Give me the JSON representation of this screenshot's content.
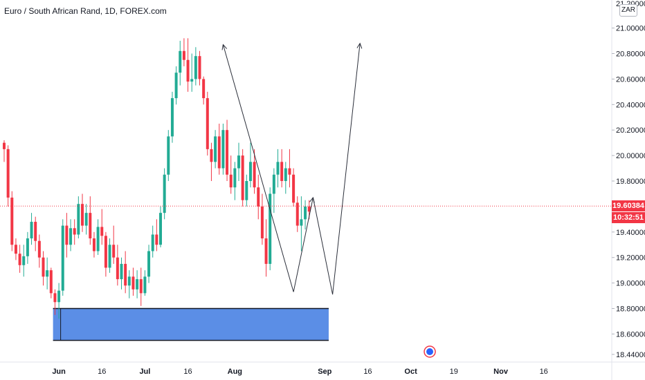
{
  "header": {
    "title": "Euro / South African Rand, 1D, FOREX.com",
    "currency_badge": "ZAR"
  },
  "price_axis": {
    "top_cut_label": "21.20000",
    "current_price": "19.60384",
    "countdown": "10:32:51"
  },
  "colors": {
    "up": "#22ab94",
    "down": "#f23645",
    "zone_fill": "#5b8ee6",
    "current_line": "#f23645",
    "annotation": "#2a2e39",
    "axis_text": "#131722"
  },
  "chart_data": {
    "type": "candlestick",
    "title": "Euro / South African Rand, 1D, FOREX.com",
    "xlabel": "",
    "ylabel": "",
    "ylim": [
      18.38,
      21.22
    ],
    "y_ticks": [
      {
        "value": 18.44,
        "label": "18.44000"
      },
      {
        "value": 18.6,
        "label": "18.60000"
      },
      {
        "value": 18.8,
        "label": "18.80000"
      },
      {
        "value": 19.0,
        "label": "19.00000"
      },
      {
        "value": 19.2,
        "label": "19.20000"
      },
      {
        "value": 19.4,
        "label": "19.40000"
      },
      {
        "value": 19.6,
        "label": "19.60000"
      },
      {
        "value": 19.8,
        "label": "19.80000"
      },
      {
        "value": 20.0,
        "label": "20.00000"
      },
      {
        "value": 20.2,
        "label": "20.20000"
      },
      {
        "value": 20.4,
        "label": "20.40000"
      },
      {
        "value": 20.6,
        "label": "20.60000"
      },
      {
        "value": 20.8,
        "label": "20.80000"
      },
      {
        "value": 21.0,
        "label": "21.00000"
      }
    ],
    "x_ticks": [
      {
        "label": "Jun",
        "bar": 14,
        "bold": true
      },
      {
        "label": "16",
        "bar": 25,
        "bold": false
      },
      {
        "label": "Jul",
        "bar": 36,
        "bold": true
      },
      {
        "label": "16",
        "bar": 47,
        "bold": false
      },
      {
        "label": "Aug",
        "bar": 59,
        "bold": true
      },
      {
        "label": "Sep",
        "bar": 82,
        "bold": true
      },
      {
        "label": "16",
        "bar": 93,
        "bold": false
      },
      {
        "label": "Oct",
        "bar": 104,
        "bold": true
      },
      {
        "label": "19",
        "bar": 115,
        "bold": false
      },
      {
        "label": "Nov",
        "bar": 127,
        "bold": true
      },
      {
        "label": "16",
        "bar": 138,
        "bold": false
      }
    ],
    "current_price": 19.60384,
    "candles": [
      [
        20.1,
        20.12,
        19.95,
        20.05
      ],
      [
        20.05,
        20.08,
        19.6,
        19.67
      ],
      [
        19.67,
        19.72,
        19.25,
        19.3
      ],
      [
        19.3,
        19.35,
        19.18,
        19.23
      ],
      [
        19.23,
        19.3,
        19.08,
        19.14
      ],
      [
        19.14,
        19.3,
        19.05,
        19.21
      ],
      [
        19.21,
        19.4,
        19.15,
        19.35
      ],
      [
        19.35,
        19.55,
        19.3,
        19.48
      ],
      [
        19.48,
        19.52,
        19.25,
        19.33
      ],
      [
        19.33,
        19.38,
        19.12,
        19.2
      ],
      [
        19.2,
        19.25,
        18.98,
        19.05
      ],
      [
        19.05,
        19.2,
        18.95,
        19.1
      ],
      [
        19.1,
        19.12,
        18.88,
        18.92
      ],
      [
        18.92,
        18.95,
        18.75,
        18.85
      ],
      [
        18.85,
        19.0,
        18.72,
        18.94
      ],
      [
        18.94,
        19.5,
        18.9,
        19.45
      ],
      [
        19.45,
        19.55,
        19.2,
        19.3
      ],
      [
        19.3,
        19.5,
        19.25,
        19.43
      ],
      [
        19.43,
        19.5,
        19.3,
        19.38
      ],
      [
        19.38,
        19.68,
        19.35,
        19.62
      ],
      [
        19.62,
        19.7,
        19.4,
        19.45
      ],
      [
        19.45,
        19.62,
        19.38,
        19.55
      ],
      [
        19.55,
        19.68,
        19.3,
        19.35
      ],
      [
        19.35,
        19.4,
        19.2,
        19.25
      ],
      [
        19.25,
        19.5,
        19.22,
        19.44
      ],
      [
        19.44,
        19.58,
        19.3,
        19.37
      ],
      [
        19.37,
        19.4,
        19.05,
        19.12
      ],
      [
        19.12,
        19.35,
        19.08,
        19.3
      ],
      [
        19.3,
        19.45,
        19.15,
        19.2
      ],
      [
        19.2,
        19.3,
        18.98,
        19.03
      ],
      [
        19.03,
        19.2,
        18.95,
        19.15
      ],
      [
        19.15,
        19.25,
        18.92,
        18.98
      ],
      [
        18.98,
        19.1,
        18.88,
        19.05
      ],
      [
        19.05,
        19.12,
        18.9,
        18.95
      ],
      [
        18.95,
        19.1,
        18.88,
        19.03
      ],
      [
        19.03,
        19.12,
        18.82,
        18.92
      ],
      [
        18.92,
        19.1,
        18.9,
        19.05
      ],
      [
        19.05,
        19.3,
        19.0,
        19.25
      ],
      [
        19.25,
        19.45,
        19.2,
        19.38
      ],
      [
        19.38,
        19.5,
        19.25,
        19.3
      ],
      [
        19.3,
        19.6,
        19.28,
        19.55
      ],
      [
        19.55,
        19.9,
        19.5,
        19.85
      ],
      [
        19.85,
        20.2,
        19.8,
        20.15
      ],
      [
        20.15,
        20.5,
        20.1,
        20.45
      ],
      [
        20.45,
        20.7,
        20.4,
        20.65
      ],
      [
        20.65,
        20.9,
        20.55,
        20.82
      ],
      [
        20.82,
        20.92,
        20.7,
        20.75
      ],
      [
        20.75,
        20.92,
        20.5,
        20.58
      ],
      [
        20.58,
        20.8,
        20.5,
        20.6
      ],
      [
        20.6,
        20.85,
        20.55,
        20.78
      ],
      [
        20.78,
        20.82,
        20.55,
        20.6
      ],
      [
        20.6,
        20.62,
        20.4,
        20.45
      ],
      [
        20.45,
        20.5,
        20.0,
        20.05
      ],
      [
        20.05,
        20.1,
        19.8,
        19.95
      ],
      [
        19.95,
        20.2,
        19.9,
        20.15
      ],
      [
        20.15,
        20.25,
        19.85,
        19.9
      ],
      [
        19.9,
        20.25,
        19.85,
        20.2
      ],
      [
        20.2,
        20.28,
        19.8,
        19.85
      ],
      [
        19.85,
        20.0,
        19.7,
        19.75
      ],
      [
        19.75,
        19.95,
        19.65,
        19.9
      ],
      [
        19.9,
        20.1,
        19.8,
        20.0
      ],
      [
        20.0,
        20.05,
        19.6,
        19.65
      ],
      [
        19.65,
        19.85,
        19.6,
        19.8
      ],
      [
        19.8,
        20.1,
        19.75,
        19.95
      ],
      [
        19.95,
        20.05,
        19.7,
        19.75
      ],
      [
        19.75,
        19.85,
        19.5,
        19.6
      ],
      [
        19.6,
        19.7,
        19.3,
        19.35
      ],
      [
        19.35,
        19.5,
        19.05,
        19.15
      ],
      [
        19.15,
        19.75,
        19.1,
        19.7
      ],
      [
        19.7,
        19.9,
        19.55,
        19.85
      ],
      [
        19.85,
        20.05,
        19.75,
        19.95
      ],
      [
        19.95,
        20.05,
        19.75,
        19.8
      ],
      [
        19.8,
        19.95,
        19.7,
        19.9
      ],
      [
        19.9,
        20.05,
        19.75,
        19.85
      ],
      [
        19.85,
        19.9,
        19.6,
        19.63
      ],
      [
        19.63,
        19.68,
        19.4,
        19.45
      ],
      [
        19.45,
        19.68,
        19.25,
        19.5
      ],
      [
        19.5,
        19.65,
        19.42,
        19.6
      ],
      [
        19.6,
        19.65,
        19.5,
        19.56
      ]
    ],
    "zone": {
      "from": 18.55,
      "to": 18.8,
      "start_bar": 12.5,
      "end_bar": 83
    },
    "annotation_paths": [
      [
        [
          56,
          20.87
        ],
        [
          74,
          18.93
        ],
        [
          79,
          19.67
        ],
        [
          84,
          18.91
        ],
        [
          91,
          20.88
        ]
      ]
    ]
  }
}
